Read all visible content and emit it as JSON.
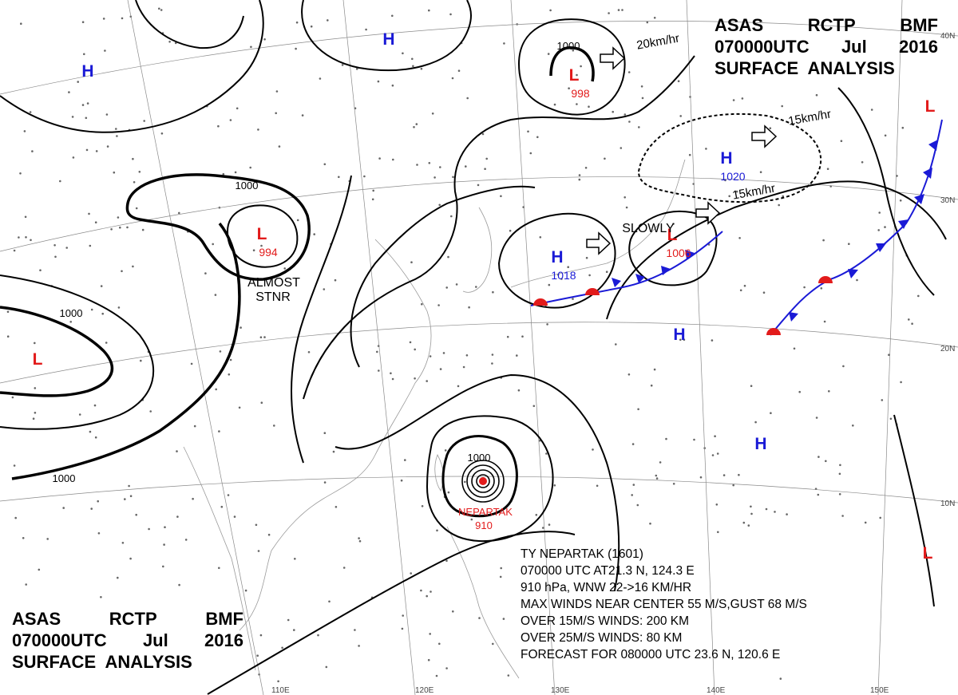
{
  "header": {
    "line1": [
      "ASAS",
      "RCTP",
      "BMF"
    ],
    "line2": [
      "070000UTC",
      "Jul",
      "2016"
    ],
    "line3": "SURFACE  ANALYSIS"
  },
  "typhoon_box": {
    "name_line": "TY  NEPARTAK  (1601)",
    "position_line": "070000 UTC  AT21.3 N, 124.3 E",
    "motion_line": "910 hPa, WNW  22->16 KM/HR",
    "maxwind_line": "MAX WINDS NEAR CENTER 55 M/S,GUST 68 M/S",
    "r15_line": "OVER 15M/S WINDS: 200 KM",
    "r25_line": "OVER 25M/S WINDS: 80 KM",
    "forecast_line": "FORECAST FOR 080000 UTC 23.6 N, 120.6 E"
  },
  "typhoon": {
    "name": "NEPARTAK",
    "pressure": "910",
    "isobar": "1000"
  },
  "pressure_systems": [
    {
      "id": "h-nw",
      "type": "H",
      "color": "#1a1ad6"
    },
    {
      "id": "h-n",
      "type": "H",
      "color": "#1a1ad6"
    },
    {
      "id": "l-nn",
      "type": "L",
      "color": "#e21b1b",
      "pressure": "998"
    },
    {
      "id": "l-mongolia",
      "type": "L",
      "color": "#e21b1b",
      "pressure": "994"
    },
    {
      "id": "l-w",
      "type": "L",
      "color": "#e21b1b"
    },
    {
      "id": "h-1020",
      "type": "H",
      "color": "#1a1ad6",
      "pressure": "1020"
    },
    {
      "id": "h-1018",
      "type": "H",
      "color": "#1a1ad6",
      "pressure": "1018"
    },
    {
      "id": "l-1006",
      "type": "L",
      "color": "#e21b1b",
      "pressure": "1006"
    },
    {
      "id": "h-pac1",
      "type": "H",
      "color": "#1a1ad6"
    },
    {
      "id": "h-pac2",
      "type": "H",
      "color": "#1a1ad6"
    },
    {
      "id": "l-ne",
      "type": "L",
      "color": "#e21b1b"
    },
    {
      "id": "l-se",
      "type": "L",
      "color": "#e21b1b"
    }
  ],
  "isobar_labels": {
    "nn": "1000",
    "mongolia": "1000",
    "west": "1000",
    "southwest": "1000"
  },
  "motion_labels": {
    "nn": "20km/hr",
    "h1020a": "15km/hr",
    "h1020b": "15km/hr",
    "l1006": "SLOWLY",
    "mongolia_a": "ALMOST",
    "mongolia_b": "STNR"
  },
  "lat_labels": {
    "lat40": "40N",
    "lat30": "30N",
    "lat20": "20N",
    "lat10": "10N"
  },
  "lon_labels": {
    "lon110": "110E",
    "lon120": "120E",
    "lon130": "130E",
    "lon140": "140E",
    "lon150": "150E"
  },
  "colors": {
    "high": "#1a1ad6",
    "low": "#e21b1b",
    "cold_front": "#1a1ad6",
    "warm_front": "#e21b1b"
  }
}
